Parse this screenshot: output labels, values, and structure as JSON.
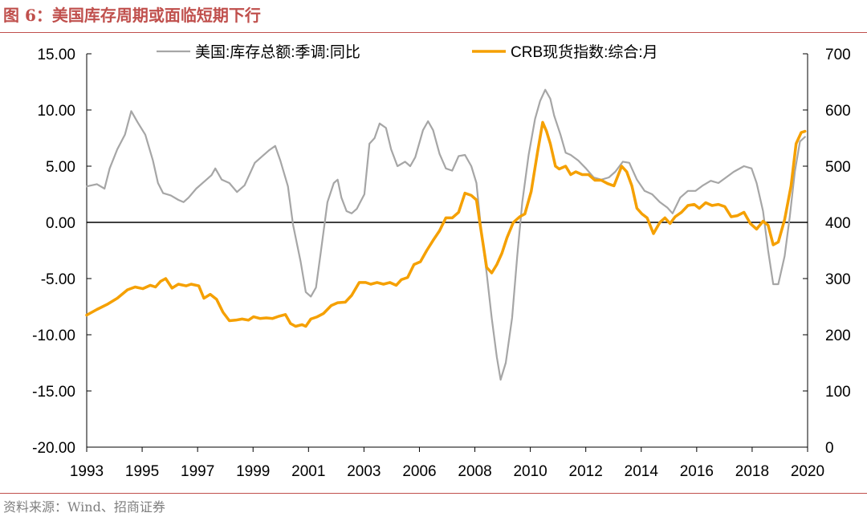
{
  "figure": {
    "title": "图 6：美国库存周期或面临短期下行",
    "source": "资料来源：Wind、招商证券"
  },
  "colors": {
    "accent": "#C0504D",
    "inventory": "#A6A6A6",
    "crb": "#F5A000",
    "zero_line": "#000000",
    "axis": "#000000"
  },
  "chart_data": {
    "type": "line",
    "title": "",
    "xlabel": "",
    "ylabel": "",
    "y2label": "",
    "legend_position": "top",
    "grid": false,
    "ylim": [
      -20,
      15
    ],
    "y2lim": [
      0,
      700
    ],
    "x_tick_labels": [
      "1993",
      "1995",
      "1997",
      "1999",
      "2001",
      "2003",
      "2006",
      "2008",
      "2010",
      "2012",
      "2014",
      "2016",
      "2018",
      "2020"
    ],
    "yticks_left": [
      "15.00",
      "10.00",
      "5.00",
      "0.00",
      "-5.00",
      "-10.00",
      "-15.00",
      "-20.00"
    ],
    "yticks_right": [
      "700",
      "600",
      "500",
      "400",
      "300",
      "200",
      "100",
      "0"
    ],
    "series": [
      {
        "name": "美国:库存总额:季调:同比",
        "axis": "left",
        "color": "#A6A6A6",
        "points": [
          [
            1993.0,
            3.2
          ],
          [
            1993.4,
            3.4
          ],
          [
            1993.7,
            3.0
          ],
          [
            1993.9,
            4.8
          ],
          [
            1994.2,
            6.5
          ],
          [
            1994.5,
            7.8
          ],
          [
            1994.75,
            9.9
          ],
          [
            1995.0,
            8.9
          ],
          [
            1995.3,
            7.8
          ],
          [
            1995.6,
            5.5
          ],
          [
            1995.8,
            3.5
          ],
          [
            1996.0,
            2.6
          ],
          [
            1996.3,
            2.4
          ],
          [
            1996.6,
            2.0
          ],
          [
            1996.8,
            1.8
          ],
          [
            1997.0,
            2.2
          ],
          [
            1997.3,
            3.0
          ],
          [
            1997.6,
            3.6
          ],
          [
            1997.9,
            4.2
          ],
          [
            1998.05,
            4.8
          ],
          [
            1998.3,
            3.8
          ],
          [
            1998.6,
            3.5
          ],
          [
            1998.9,
            2.7
          ],
          [
            1999.2,
            3.3
          ],
          [
            1999.6,
            5.3
          ],
          [
            1999.9,
            5.9
          ],
          [
            2000.15,
            6.4
          ],
          [
            2000.4,
            6.8
          ],
          [
            2000.6,
            5.5
          ],
          [
            2000.9,
            3.2
          ],
          [
            2001.1,
            -0.2
          ],
          [
            2001.4,
            -3.5
          ],
          [
            2001.6,
            -6.2
          ],
          [
            2001.8,
            -6.6
          ],
          [
            2002.0,
            -5.8
          ],
          [
            2002.2,
            -2.5
          ],
          [
            2002.45,
            1.8
          ],
          [
            2002.7,
            3.5
          ],
          [
            2002.85,
            3.8
          ],
          [
            2003.0,
            2.2
          ],
          [
            2003.2,
            1.0
          ],
          [
            2003.4,
            0.8
          ],
          [
            2003.6,
            1.2
          ],
          [
            2003.9,
            2.5
          ],
          [
            2004.1,
            7.0
          ],
          [
            2004.3,
            7.5
          ],
          [
            2004.5,
            8.8
          ],
          [
            2004.75,
            8.4
          ],
          [
            2004.95,
            6.5
          ],
          [
            2005.2,
            5.0
          ],
          [
            2005.5,
            5.4
          ],
          [
            2005.7,
            5.0
          ],
          [
            2005.9,
            5.8
          ],
          [
            2006.2,
            8.2
          ],
          [
            2006.4,
            9.0
          ],
          [
            2006.6,
            8.2
          ],
          [
            2006.85,
            6.1
          ],
          [
            2007.1,
            4.8
          ],
          [
            2007.35,
            4.6
          ],
          [
            2007.6,
            5.9
          ],
          [
            2007.85,
            6.0
          ],
          [
            2008.1,
            5.0
          ],
          [
            2008.3,
            3.5
          ],
          [
            2008.5,
            -1.0
          ],
          [
            2008.7,
            -4.5
          ],
          [
            2008.9,
            -8.5
          ],
          [
            2009.1,
            -12.0
          ],
          [
            2009.25,
            -14.0
          ],
          [
            2009.45,
            -12.5
          ],
          [
            2009.7,
            -8.5
          ],
          [
            2009.9,
            -3.0
          ],
          [
            2010.1,
            1.8
          ],
          [
            2010.35,
            6.0
          ],
          [
            2010.6,
            9.2
          ],
          [
            2010.8,
            10.8
          ],
          [
            2011.0,
            11.8
          ],
          [
            2011.2,
            11.0
          ],
          [
            2011.35,
            9.5
          ],
          [
            2011.6,
            7.8
          ],
          [
            2011.8,
            6.2
          ],
          [
            2012.0,
            6.0
          ],
          [
            2012.3,
            5.5
          ],
          [
            2012.6,
            4.8
          ],
          [
            2012.9,
            4.0
          ],
          [
            2013.2,
            3.8
          ],
          [
            2013.5,
            4.0
          ],
          [
            2013.75,
            4.5
          ],
          [
            2014.05,
            5.4
          ],
          [
            2014.3,
            5.3
          ],
          [
            2014.6,
            3.8
          ],
          [
            2014.9,
            2.8
          ],
          [
            2015.2,
            2.5
          ],
          [
            2015.5,
            1.8
          ],
          [
            2015.8,
            1.3
          ],
          [
            2016.0,
            0.8
          ],
          [
            2016.3,
            2.2
          ],
          [
            2016.6,
            2.8
          ],
          [
            2016.9,
            2.8
          ],
          [
            2017.2,
            3.3
          ],
          [
            2017.5,
            3.7
          ],
          [
            2017.8,
            3.5
          ],
          [
            2018.1,
            4.0
          ],
          [
            2018.4,
            4.5
          ],
          [
            2018.8,
            5.0
          ],
          [
            2019.1,
            4.8
          ],
          [
            2019.3,
            3.5
          ],
          [
            2019.55,
            1.0
          ],
          [
            2019.75,
            -2.5
          ],
          [
            2019.95,
            -5.5
          ],
          [
            2020.15,
            -5.5
          ],
          [
            2020.4,
            -3.0
          ],
          [
            2020.6,
            0.5
          ],
          [
            2020.8,
            4.5
          ],
          [
            2021.0,
            7.2
          ],
          [
            2021.2,
            7.6
          ]
        ]
      },
      {
        "name": "CRB现货指数:综合:月",
        "axis": "right",
        "color": "#F5A000",
        "points": [
          [
            1993.0,
            235
          ],
          [
            1993.4,
            245
          ],
          [
            1993.8,
            254
          ],
          [
            1994.2,
            265
          ],
          [
            1994.6,
            280
          ],
          [
            1994.9,
            285
          ],
          [
            1995.2,
            282
          ],
          [
            1995.5,
            288
          ],
          [
            1995.7,
            285
          ],
          [
            1995.9,
            295
          ],
          [
            1996.1,
            300
          ],
          [
            1996.35,
            283
          ],
          [
            1996.6,
            290
          ],
          [
            1996.9,
            287
          ],
          [
            1997.1,
            290
          ],
          [
            1997.4,
            287
          ],
          [
            1997.6,
            265
          ],
          [
            1997.85,
            272
          ],
          [
            1998.1,
            263
          ],
          [
            1998.35,
            240
          ],
          [
            1998.6,
            225
          ],
          [
            1998.85,
            226
          ],
          [
            1999.1,
            228
          ],
          [
            1999.35,
            226
          ],
          [
            1999.55,
            232
          ],
          [
            1999.8,
            229
          ],
          [
            2000.05,
            230
          ],
          [
            2000.3,
            229
          ],
          [
            2000.55,
            233
          ],
          [
            2000.8,
            236
          ],
          [
            2001.0,
            220
          ],
          [
            2001.2,
            215
          ],
          [
            2001.45,
            218
          ],
          [
            2001.6,
            215
          ],
          [
            2001.8,
            228
          ],
          [
            2002.05,
            232
          ],
          [
            2002.3,
            238
          ],
          [
            2002.6,
            252
          ],
          [
            2002.85,
            257
          ],
          [
            2003.15,
            258
          ],
          [
            2003.4,
            270
          ],
          [
            2003.7,
            293
          ],
          [
            2003.95,
            293
          ],
          [
            2004.15,
            290
          ],
          [
            2004.4,
            293
          ],
          [
            2004.65,
            290
          ],
          [
            2004.9,
            293
          ],
          [
            2005.15,
            288
          ],
          [
            2005.35,
            298
          ],
          [
            2005.6,
            302
          ],
          [
            2005.85,
            325
          ],
          [
            2006.1,
            330
          ],
          [
            2006.35,
            350
          ],
          [
            2006.6,
            368
          ],
          [
            2006.85,
            385
          ],
          [
            2007.1,
            408
          ],
          [
            2007.35,
            408
          ],
          [
            2007.6,
            418
          ],
          [
            2007.85,
            452
          ],
          [
            2008.1,
            448
          ],
          [
            2008.3,
            440
          ],
          [
            2008.5,
            380
          ],
          [
            2008.7,
            320
          ],
          [
            2008.9,
            310
          ],
          [
            2009.1,
            325
          ],
          [
            2009.3,
            345
          ],
          [
            2009.5,
            373
          ],
          [
            2009.75,
            400
          ],
          [
            2010.0,
            410
          ],
          [
            2010.2,
            415
          ],
          [
            2010.45,
            455
          ],
          [
            2010.7,
            525
          ],
          [
            2010.9,
            578
          ],
          [
            2011.05,
            562
          ],
          [
            2011.2,
            540
          ],
          [
            2011.4,
            500
          ],
          [
            2011.55,
            495
          ],
          [
            2011.8,
            500
          ],
          [
            2012.0,
            485
          ],
          [
            2012.2,
            490
          ],
          [
            2012.45,
            485
          ],
          [
            2012.7,
            485
          ],
          [
            2012.95,
            475
          ],
          [
            2013.2,
            475
          ],
          [
            2013.45,
            469
          ],
          [
            2013.7,
            465
          ],
          [
            2014.0,
            500
          ],
          [
            2014.2,
            490
          ],
          [
            2014.4,
            465
          ],
          [
            2014.6,
            425
          ],
          [
            2014.8,
            415
          ],
          [
            2015.0,
            408
          ],
          [
            2015.25,
            380
          ],
          [
            2015.5,
            400
          ],
          [
            2015.7,
            408
          ],
          [
            2015.9,
            398
          ],
          [
            2016.1,
            410
          ],
          [
            2016.35,
            418
          ],
          [
            2016.6,
            430
          ],
          [
            2016.85,
            432
          ],
          [
            2017.05,
            425
          ],
          [
            2017.3,
            435
          ],
          [
            2017.55,
            430
          ],
          [
            2017.8,
            432
          ],
          [
            2018.05,
            428
          ],
          [
            2018.3,
            410
          ],
          [
            2018.55,
            412
          ],
          [
            2018.8,
            418
          ],
          [
            2019.05,
            398
          ],
          [
            2019.3,
            388
          ],
          [
            2019.55,
            402
          ],
          [
            2019.75,
            395
          ],
          [
            2019.95,
            360
          ],
          [
            2020.15,
            365
          ],
          [
            2020.4,
            405
          ],
          [
            2020.65,
            465
          ],
          [
            2020.85,
            540
          ],
          [
            2021.05,
            560
          ],
          [
            2021.2,
            562
          ]
        ]
      }
    ]
  }
}
